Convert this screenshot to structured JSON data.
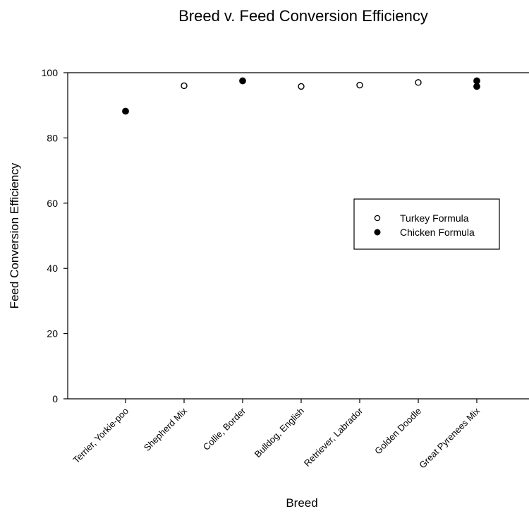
{
  "chart_data": {
    "type": "scatter",
    "title": "Breed v. Feed Conversion Efficiency",
    "xlabel": "Breed",
    "ylabel": "Feed Conversion Efficiency",
    "ylim": [
      0,
      100
    ],
    "yticks": [
      0,
      20,
      40,
      60,
      80,
      100
    ],
    "categories": [
      "Terrier, Yorkie-poo",
      "Shepherd Mix",
      "Collie, Border",
      "Bulldog, English",
      "Retriever, Labrador",
      "Golden Doodle",
      "Great Pyrenees Mix"
    ],
    "series": [
      {
        "name": "Turkey Formula",
        "marker": "open-circle",
        "points": [
          {
            "x": "Shepherd Mix",
            "y": 96
          },
          {
            "x": "Bulldog, English",
            "y": 95.8
          },
          {
            "x": "Retriever, Labrador",
            "y": 96.2
          },
          {
            "x": "Golden Doodle",
            "y": 97
          }
        ]
      },
      {
        "name": "Chicken Formula",
        "marker": "filled-circle",
        "points": [
          {
            "x": "Terrier, Yorkie-poo",
            "y": 88.2
          },
          {
            "x": "Collie, Border",
            "y": 97.5
          },
          {
            "x": "Great Pyrenees Mix",
            "y": 97.5
          },
          {
            "x": "Great Pyrenees Mix",
            "y": 95.8
          }
        ]
      }
    ],
    "grid": false,
    "legend_position": "center-right"
  }
}
